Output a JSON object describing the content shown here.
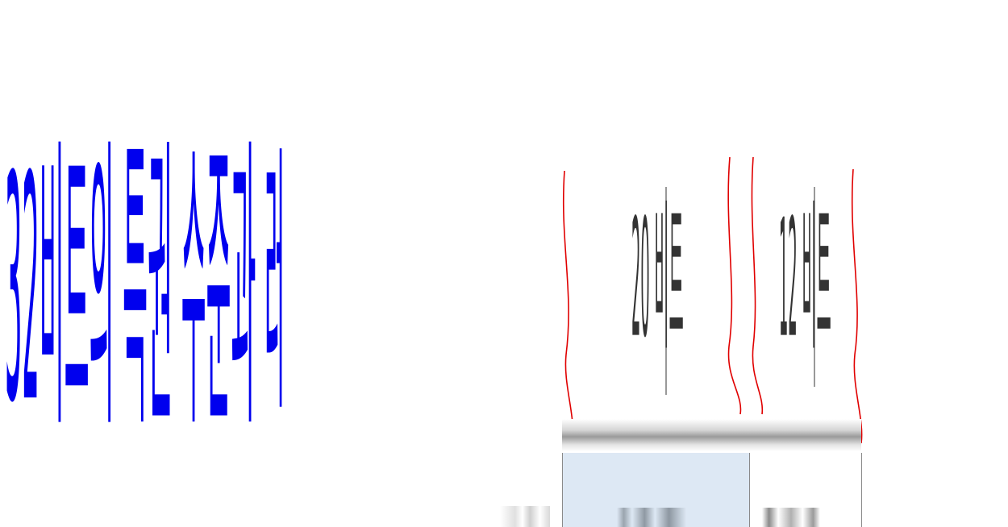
{
  "title": "32비트의 특권 수준과 레이어",
  "segments": [
    {
      "label": "20 비트"
    },
    {
      "label": "12 비트"
    }
  ],
  "colors": {
    "title": "#0000ee",
    "marker": "#e00000",
    "label": "#333333",
    "cell_highlight": "#dde8f4"
  }
}
